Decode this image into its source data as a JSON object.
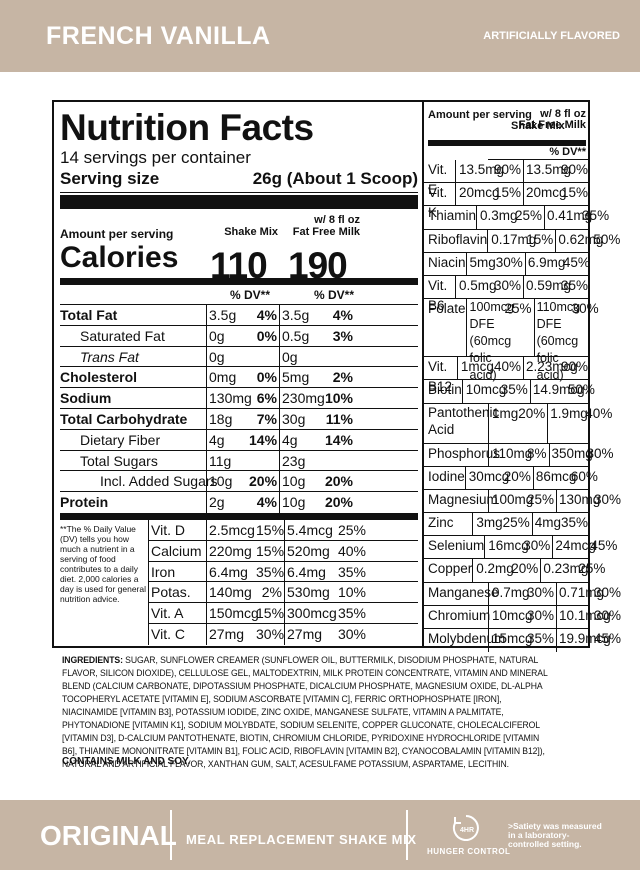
{
  "header": {
    "flavor": "FRENCH VANILLA",
    "note": "ARTIFICIALLY FLAVORED"
  },
  "facts": {
    "title": "Nutrition Facts",
    "servings": "14 servings per container",
    "serving_size_label": "Serving size",
    "serving_size_value": "26g (About 1 Scoop)",
    "amount_per_serving": "Amount per serving",
    "calories_label": "Calories",
    "col1_head": "Shake Mix",
    "col2_head_line1": "w/ 8 fl oz",
    "col2_head_line2": "Fat Free Milk",
    "calories_col1": "110",
    "calories_col2": "190",
    "dv_head": "% DV**",
    "nutrients": [
      {
        "name": "Total Fat",
        "v1": "3.5g",
        "p1": "4%",
        "v2": "3.5g",
        "p2": "4%"
      },
      {
        "name": "Saturated Fat",
        "v1": "0g",
        "p1": "0%",
        "v2": "0.5g",
        "p2": "3%"
      },
      {
        "name": "Trans Fat",
        "v1": "0g",
        "p1": "",
        "v2": "0g",
        "p2": ""
      },
      {
        "name": "Cholesterol",
        "v1": "0mg",
        "p1": "0%",
        "v2": "5mg",
        "p2": "2%"
      },
      {
        "name": "Sodium",
        "v1": "130mg",
        "p1": "6%",
        "v2": "230mg",
        "p2": "10%"
      },
      {
        "name": "Total Carbohydrate",
        "v1": "18g",
        "p1": "7%",
        "v2": "30g",
        "p2": "11%"
      },
      {
        "name": "Dietary Fiber",
        "v1": "4g",
        "p1": "14%",
        "v2": "4g",
        "p2": "14%"
      },
      {
        "name": "Total Sugars",
        "v1": "11g",
        "p1": "",
        "v2": "23g",
        "p2": ""
      },
      {
        "name": "Incl. Added Sugars",
        "v1": "10g",
        "p1": "20%",
        "v2": "10g",
        "p2": "20%"
      },
      {
        "name": "Protein",
        "v1": "2g",
        "p1": "4%",
        "v2": "10g",
        "p2": "20%"
      }
    ],
    "footnote": "**The % Daily Value (DV) tells you how much a nutrient in a serving of food contributes to a daily diet. 2,000 calories a day is used for general nutrition advice.",
    "vitamins_left": [
      {
        "name": "Vit. D",
        "v1": "2.5mcg",
        "p1": "15%",
        "v2": "5.4mcg",
        "p2": "25%"
      },
      {
        "name": "Calcium",
        "v1": "220mg",
        "p1": "15%",
        "v2": "520mg",
        "p2": "40%"
      },
      {
        "name": "Iron",
        "v1": "6.4mg",
        "p1": "35%",
        "v2": "6.4mg",
        "p2": "35%"
      },
      {
        "name": "Potas.",
        "v1": "140mg",
        "p1": "2%",
        "v2": "530mg",
        "p2": "10%"
      },
      {
        "name": "Vit. A",
        "v1": "150mcg",
        "p1": "15%",
        "v2": "300mcg",
        "p2": "35%"
      },
      {
        "name": "Vit. C",
        "v1": "27mg",
        "p1": "30%",
        "v2": "27mg",
        "p2": "30%"
      }
    ],
    "right_head_left": "Amount per serving",
    "right_head_mid": "Shake Mix",
    "right_head_r1": "w/ 8 fl oz",
    "right_head_r2": "Fat Free Milk",
    "right_dv": "% DV**",
    "vitamins_right": [
      {
        "name": "Vit. E",
        "v1": "13.5mg",
        "p1": "90%",
        "v2": "13.5mg",
        "p2": "90%"
      },
      {
        "name": "Vit. K",
        "v1": "20mcg",
        "p1": "15%",
        "v2": "20mcg",
        "p2": "15%"
      },
      {
        "name": "Thiamin",
        "v1": "0.3mg",
        "p1": "25%",
        "v2": "0.41mg",
        "p2": "35%"
      },
      {
        "name": "Riboflavin",
        "v1": "0.17mg",
        "p1": "15%",
        "v2": "0.62mg",
        "p2": "50%"
      },
      {
        "name": "Niacin",
        "v1": "5mg",
        "p1": "30%",
        "v2": "6.9mg",
        "p2": "45%"
      },
      {
        "name": "Vit. B6",
        "v1": "0.5mg",
        "p1": "30%",
        "v2": "0.59mg",
        "p2": "35%"
      },
      {
        "name": "Folate",
        "v1": "100mcg DFE (60mcg folic acid)",
        "p1": "25%",
        "v2": "110mcg DFE (60mcg folic acid)",
        "p2": "30%"
      },
      {
        "name": "Vit. B12",
        "v1": "1mcg",
        "p1": "40%",
        "v2": "2.23mcg",
        "p2": "90%"
      },
      {
        "name": "Biotin",
        "v1": "10mcg",
        "p1": "35%",
        "v2": "14.9mcg",
        "p2": "50%"
      },
      {
        "name": "Pantothenic Acid",
        "v1": "1mg",
        "p1": "20%",
        "v2": "1.9mg",
        "p2": "40%"
      },
      {
        "name": "Phosphorus",
        "v1": "110mg",
        "p1": "8%",
        "v2": "350mg",
        "p2": "30%"
      },
      {
        "name": "Iodine",
        "v1": "30mcg",
        "p1": "20%",
        "v2": "86mcg",
        "p2": "60%"
      },
      {
        "name": "Magnesium",
        "v1": "100mg",
        "p1": "25%",
        "v2": "130mg",
        "p2": "30%"
      },
      {
        "name": "Zinc",
        "v1": "3mg",
        "p1": "25%",
        "v2": "4mg",
        "p2": "35%"
      },
      {
        "name": "Selenium",
        "v1": "16mcg",
        "p1": "30%",
        "v2": "24mcg",
        "p2": "45%"
      },
      {
        "name": "Copper",
        "v1": "0.2mg",
        "p1": "20%",
        "v2": "0.23mg",
        "p2": "25%"
      },
      {
        "name": "Manganese",
        "v1": "0.7mg",
        "p1": "30%",
        "v2": "0.71mg",
        "p2": "30%"
      },
      {
        "name": "Chromium",
        "v1": "10mcg",
        "p1": "30%",
        "v2": "10.1mcg",
        "p2": "30%"
      },
      {
        "name": "Molybdenum",
        "v1": "15mcg",
        "p1": "35%",
        "v2": "19.9mcg",
        "p2": "45%"
      }
    ]
  },
  "ingredients_label": "INGREDIENTS:",
  "ingredients_text": "SUGAR, SUNFLOWER CREAMER (SUNFLOWER OIL, BUTTERMILK, DISODIUM PHOSPHATE, NATURAL FLAVOR, SILICON DIOXIDE), CELLULOSE GEL, MALTODEXTRIN, MILK PROTEIN CONCENTRATE, VITAMIN AND MINERAL BLEND (CALCIUM CARBONATE, DIPOTASSIUM PHOSPHATE, DICALCIUM PHOSPHATE, MAGNESIUM OXIDE, DL-ALPHA TOCOPHERYL ACETATE [VITAMIN E], SODIUM ASCORBATE [VITAMIN C], FERRIC ORTHOPHOSPHATE [IRON], NIACINAMIDE [VITAMIN B3], POTASSIUM IODIDE, ZINC OXIDE, MANGANESE SULFATE, VITAMIN A PALMITATE, PHYTONADIONE [VITAMIN K1], SODIUM MOLYBDATE, SODIUM SELENITE, COPPER GLUCONATE, CHOLECALCIFEROL [VITAMIN D3], D-CALCIUM PANTOTHENATE, BIOTIN, CHROMIUM CHLORIDE, PYRIDOXINE HYDROCHLORIDE [VITAMIN B6], THIAMINE MONONITRATE [VITAMIN B1], FOLIC ACID, RIBOFLAVIN [VITAMIN B2], CYANOCOBALAMIN [VITAMIN B12]), NATURAL AND ARTIFICIAL FLAVOR, XANTHAN GUM, SALT, ACESULFAME POTASSIUM, ASPARTAME, LECITHIN.",
  "contains": "CONTAINS MILK AND SOY.",
  "footer": {
    "brand": "ORIGINAL",
    "product": "MEAL REPLACEMENT SHAKE MIX",
    "hc_icon_text": "4HR",
    "hc_label": "HUNGER CONTROL",
    "satiety_note": ">Satiety was measured in a laboratory-controlled setting."
  },
  "colors": {
    "band": "#c6b5a4",
    "text": "#111111"
  }
}
